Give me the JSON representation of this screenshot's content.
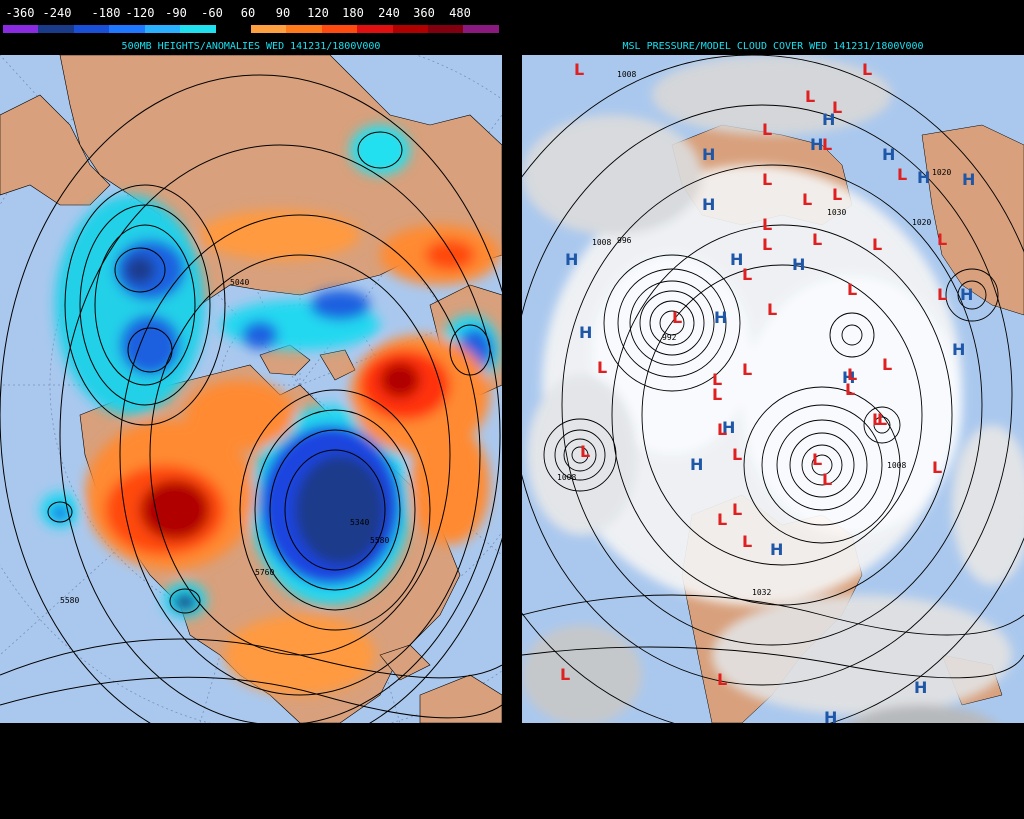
{
  "legend": {
    "labels": [
      "-360",
      "-240",
      "-180",
      "-120",
      "-90",
      "-60",
      "60",
      "90",
      "120",
      "180",
      "240",
      "360",
      "480"
    ],
    "colors": [
      "#8a2be2",
      "#1a3a8a",
      "#1a4fd8",
      "#1f78ff",
      "#2ab0ff",
      "#20e0f0",
      "#000000",
      "#ffa040",
      "#ff7a1a",
      "#ff4a10",
      "#e01010",
      "#b00000",
      "#800010",
      "#8a1a80"
    ]
  },
  "left_panel": {
    "title": "500MB HEIGHTS/ANOMALIES WED 141231/1800V000",
    "contour_labels": [
      "5040",
      "5340",
      "5580",
      "5760",
      "5580"
    ]
  },
  "right_panel": {
    "title": "MSL PRESSURE/MODEL CLOUD COVER WED 141231/1800V000",
    "pressure_labels": [
      "1008",
      "1008",
      "1008",
      "1008",
      "1020",
      "1020",
      "1030",
      "1032",
      "996",
      "992"
    ],
    "high_symbol": "H",
    "low_symbol": "L",
    "high_color": "#1e56a8",
    "low_color": "#e02020"
  },
  "colors": {
    "ocean": "#aac8ee",
    "land": "#d8a07c",
    "title_cyan": "#18e0f0"
  }
}
